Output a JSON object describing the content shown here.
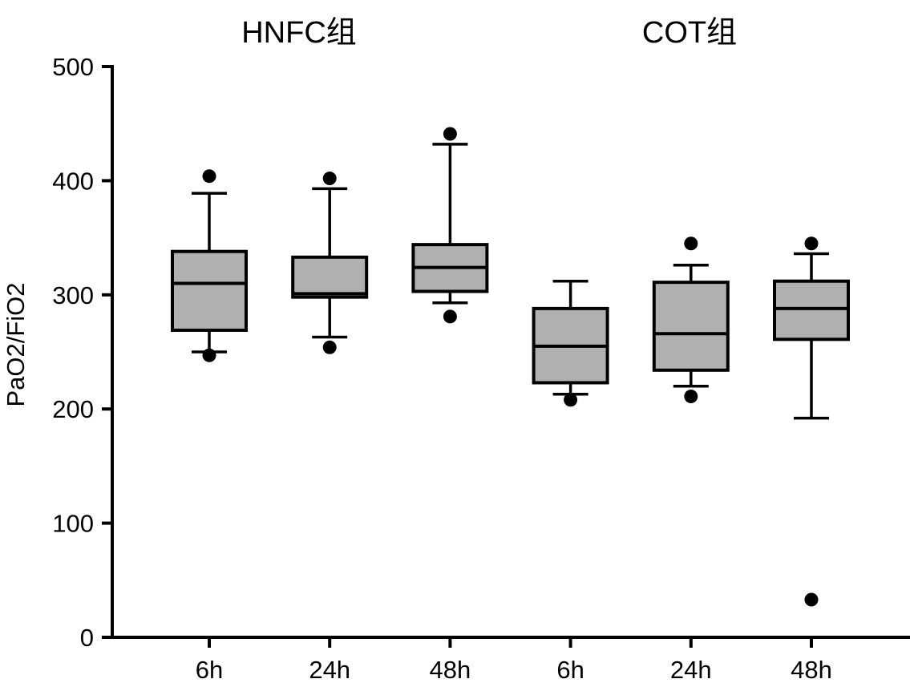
{
  "chart_data": {
    "type": "boxplot",
    "title": "",
    "ylabel": "PaO2/FiO2",
    "xlabel": "",
    "ylim": [
      0,
      500
    ],
    "yticks": [
      0,
      100,
      200,
      300,
      400,
      500
    ],
    "grid": false,
    "legend": false,
    "colors": {
      "box_fill": "#b0b0b0",
      "line": "#000000",
      "background": "#ffffff"
    },
    "groups": [
      {
        "label": "HNFC组",
        "boxes": [
          {
            "time": "6h",
            "whisker_low": 250,
            "q1": 269,
            "median": 310,
            "q3": 338,
            "whisker_high": 389,
            "outliers": [
              404,
              247
            ]
          },
          {
            "time": "24h",
            "whisker_low": 263,
            "q1": 298,
            "median": 301,
            "q3": 333,
            "whisker_high": 393,
            "outliers": [
              402,
              254
            ]
          },
          {
            "time": "48h",
            "whisker_low": 293,
            "q1": 303,
            "median": 324,
            "q3": 344,
            "whisker_high": 432,
            "outliers": [
              441,
              281
            ]
          }
        ]
      },
      {
        "label": "COT组",
        "boxes": [
          {
            "time": "6h",
            "whisker_low": 213,
            "q1": 223,
            "median": 255,
            "q3": 288,
            "whisker_high": 312,
            "outliers": [
              208
            ]
          },
          {
            "time": "24h",
            "whisker_low": 220,
            "q1": 234,
            "median": 266,
            "q3": 311,
            "whisker_high": 326,
            "outliers": [
              345,
              211
            ]
          },
          {
            "time": "48h",
            "whisker_low": 192,
            "q1": 261,
            "median": 288,
            "q3": 312,
            "whisker_high": 336,
            "outliers": [
              345,
              33
            ]
          }
        ]
      }
    ]
  }
}
